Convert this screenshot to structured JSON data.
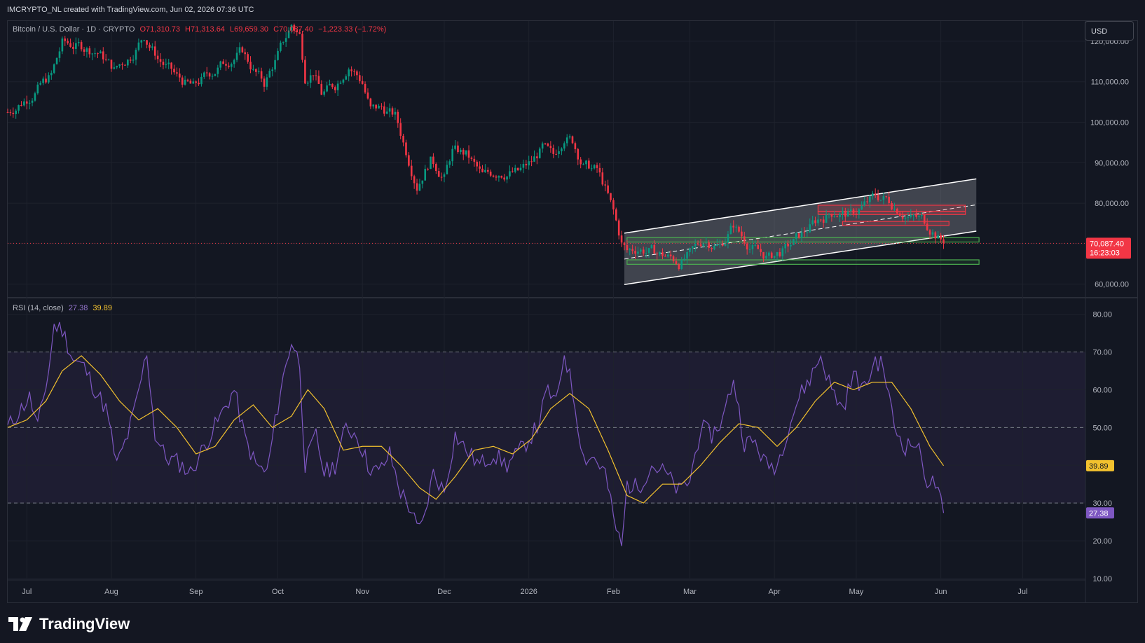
{
  "header": {
    "text": "IMCRYPTO_NL created with TradingView.com, Jun 02, 2026 07:36 UTC"
  },
  "legend": {
    "symbol": "Bitcoin / U.S. Dollar · 1D · CRYPTO",
    "open": "O71,310.73",
    "high": "H71,313.64",
    "low": "L69,659.30",
    "close": "C70,087.40",
    "change": "−1,223.33 (−1.72%)"
  },
  "currency_button": "USD",
  "price_label": {
    "price": "70,087.40",
    "countdown": "16:23:03"
  },
  "rsi_legend": {
    "label": "RSI (14, close)",
    "rsi": "27.38",
    "ma": "39.89"
  },
  "rsi_labels": {
    "rsi": "27.38",
    "ma": "39.89"
  },
  "brand": {
    "name": "TradingView"
  },
  "colors": {
    "up": "#089981",
    "down": "#f23645",
    "rsi": "#7e57c2",
    "rsi_ma": "#f2c12e",
    "support": "#4caf50",
    "resistance": "#f23645",
    "channel": "#ffffff",
    "price_line": "#f23645"
  },
  "chart_data": [
    {
      "type": "candlestick",
      "title": "Bitcoin / U.S. Dollar · 1D · CRYPTO",
      "x_range": [
        "2025-06-24",
        "2026-07-24"
      ],
      "ylim": [
        57000,
        125000
      ],
      "yticks": [
        60000,
        70000,
        80000,
        90000,
        100000,
        110000,
        120000
      ],
      "ytick_labels": [
        "60,000.00",
        "70,000.00",
        "80,000.00",
        "90,000.00",
        "100,000.00",
        "110,000.00",
        "120,000.00"
      ],
      "xticks": [
        {
          "date": "2025-07-01",
          "label": "Jul"
        },
        {
          "date": "2025-08-01",
          "label": "Aug"
        },
        {
          "date": "2025-09-01",
          "label": "Sep"
        },
        {
          "date": "2025-10-01",
          "label": "Oct"
        },
        {
          "date": "2025-11-01",
          "label": "Nov"
        },
        {
          "date": "2025-12-01",
          "label": "Dec"
        },
        {
          "date": "2026-01-01",
          "label": "2026"
        },
        {
          "date": "2026-02-01",
          "label": "Feb"
        },
        {
          "date": "2026-03-01",
          "label": "Mar"
        },
        {
          "date": "2026-04-01",
          "label": "Apr"
        },
        {
          "date": "2026-05-01",
          "label": "May"
        },
        {
          "date": "2026-06-01",
          "label": "Jun"
        },
        {
          "date": "2026-07-01",
          "label": "Jul"
        }
      ],
      "trend_path": [
        [
          "2025-06-24",
          102500
        ],
        [
          "2025-07-01",
          106000
        ],
        [
          "2025-07-10",
          111500
        ],
        [
          "2025-07-14",
          119500
        ],
        [
          "2025-07-22",
          118500
        ],
        [
          "2025-07-27",
          117500
        ],
        [
          "2025-08-02",
          113000
        ],
        [
          "2025-08-08",
          116500
        ],
        [
          "2025-08-13",
          121500
        ],
        [
          "2025-08-18",
          116000
        ],
        [
          "2025-08-25",
          111000
        ],
        [
          "2025-08-31",
          108500
        ],
        [
          "2025-09-05",
          111500
        ],
        [
          "2025-09-13",
          115500
        ],
        [
          "2025-09-18",
          117500
        ],
        [
          "2025-09-22",
          113000
        ],
        [
          "2025-09-26",
          109500
        ],
        [
          "2025-10-01",
          116500
        ],
        [
          "2025-10-06",
          124000
        ],
        [
          "2025-10-09",
          121500
        ],
        [
          "2025-10-11",
          111500
        ],
        [
          "2025-10-14",
          113000
        ],
        [
          "2025-10-17",
          107000
        ],
        [
          "2025-10-22",
          109000
        ],
        [
          "2025-10-27",
          114500
        ],
        [
          "2025-11-01",
          110000
        ],
        [
          "2025-11-04",
          103000
        ],
        [
          "2025-11-08",
          103500
        ],
        [
          "2025-11-13",
          101500
        ],
        [
          "2025-11-17",
          93000
        ],
        [
          "2025-11-21",
          85000
        ],
        [
          "2025-11-26",
          91000
        ],
        [
          "2025-12-01",
          86500
        ],
        [
          "2025-12-04",
          93000
        ],
        [
          "2025-12-09",
          92000
        ],
        [
          "2025-12-15",
          86500
        ],
        [
          "2025-12-21",
          88000
        ],
        [
          "2025-12-28",
          87500
        ],
        [
          "2026-01-02",
          90000
        ],
        [
          "2026-01-06",
          93500
        ],
        [
          "2026-01-10",
          91000
        ],
        [
          "2026-01-14",
          97000
        ],
        [
          "2026-01-17",
          95500
        ],
        [
          "2026-01-21",
          89500
        ],
        [
          "2026-01-26",
          88000
        ],
        [
          "2026-01-29",
          83500
        ],
        [
          "2026-02-01",
          77500
        ],
        [
          "2026-02-04",
          70000
        ],
        [
          "2026-02-06",
          68000
        ],
        [
          "2026-02-10",
          69000
        ],
        [
          "2026-02-15",
          68000
        ],
        [
          "2026-02-20",
          67000
        ],
        [
          "2026-02-25",
          65500
        ],
        [
          "2026-03-01",
          67000
        ],
        [
          "2026-03-06",
          71000
        ],
        [
          "2026-03-12",
          69500
        ],
        [
          "2026-03-17",
          74500
        ],
        [
          "2026-03-21",
          71000
        ],
        [
          "2026-03-26",
          68000
        ],
        [
          "2026-03-30",
          66500
        ],
        [
          "2026-04-05",
          68500
        ],
        [
          "2026-04-10",
          71500
        ],
        [
          "2026-04-17",
          76000
        ],
        [
          "2026-04-23",
          78000
        ],
        [
          "2026-04-29",
          77000
        ],
        [
          "2026-05-03",
          79000
        ],
        [
          "2026-05-08",
          81500
        ],
        [
          "2026-05-12",
          81000
        ],
        [
          "2026-05-17",
          78500
        ],
        [
          "2026-05-21",
          76500
        ],
        [
          "2026-05-25",
          76000
        ],
        [
          "2026-05-29",
          73500
        ],
        [
          "2026-06-02",
          70087
        ]
      ],
      "drawings": {
        "channel_upper": [
          [
            "2026-02-05",
            72600
          ],
          [
            "2026-06-14",
            86000
          ]
        ],
        "channel_lower": [
          [
            "2026-02-05",
            59900
          ],
          [
            "2026-06-14",
            73100
          ]
        ],
        "channel_mid": [
          [
            "2026-02-05",
            66200
          ],
          [
            "2026-06-14",
            79600
          ]
        ],
        "resistance_zones": [
          {
            "from": "2026-04-17",
            "to": "2026-06-10",
            "low": 78000,
            "high": 79500
          },
          {
            "from": "2026-04-17",
            "to": "2026-06-10",
            "low": 77200,
            "high": 78000
          },
          {
            "from": "2026-04-26",
            "to": "2026-06-04",
            "low": 74500,
            "high": 75500
          }
        ],
        "support_zones": [
          {
            "from": "2026-02-06",
            "to": "2026-06-15",
            "low": 70400,
            "high": 71500
          },
          {
            "from": "2026-02-06",
            "to": "2026-06-15",
            "low": 64900,
            "high": 66000
          }
        ]
      },
      "last_price": 70087.4
    },
    {
      "type": "line",
      "title": "RSI (14, close)",
      "ylim": [
        10,
        84
      ],
      "yticks": [
        10,
        20,
        30,
        40,
        50,
        60,
        70,
        80
      ],
      "ytick_labels": [
        "10.00",
        "20.00",
        "30.00",
        "40.00",
        "50.00",
        "60.00",
        "70.00",
        "80.00"
      ],
      "bands": {
        "upper": 70,
        "middle": 50,
        "lower": 30
      },
      "series": [
        {
          "name": "RSI",
          "values": [
            [
              "2025-06-24",
              50
            ],
            [
              "2025-07-02",
              58
            ],
            [
              "2025-07-05",
              50
            ],
            [
              "2025-07-09",
              65
            ],
            [
              "2025-07-11",
              77
            ],
            [
              "2025-07-14",
              76
            ],
            [
              "2025-07-18",
              68
            ],
            [
              "2025-07-22",
              66
            ],
            [
              "2025-07-26",
              60
            ],
            [
              "2025-07-30",
              55
            ],
            [
              "2025-08-03",
              40
            ],
            [
              "2025-08-07",
              48
            ],
            [
              "2025-08-10",
              56
            ],
            [
              "2025-08-14",
              70
            ],
            [
              "2025-08-17",
              48
            ],
            [
              "2025-08-21",
              42
            ],
            [
              "2025-08-25",
              41
            ],
            [
              "2025-08-30",
              38
            ],
            [
              "2025-09-04",
              45
            ],
            [
              "2025-09-10",
              53
            ],
            [
              "2025-09-15",
              60
            ],
            [
              "2025-09-19",
              47
            ],
            [
              "2025-09-23",
              40
            ],
            [
              "2025-09-27",
              38
            ],
            [
              "2025-10-02",
              60
            ],
            [
              "2025-10-06",
              73
            ],
            [
              "2025-10-09",
              67
            ],
            [
              "2025-10-11",
              40
            ],
            [
              "2025-10-15",
              48
            ],
            [
              "2025-10-18",
              38
            ],
            [
              "2025-10-22",
              40
            ],
            [
              "2025-10-26",
              50
            ],
            [
              "2025-10-30",
              48
            ],
            [
              "2025-11-03",
              40
            ],
            [
              "2025-11-07",
              38
            ],
            [
              "2025-11-11",
              43
            ],
            [
              "2025-11-15",
              33
            ],
            [
              "2025-11-19",
              28
            ],
            [
              "2025-11-21",
              23
            ],
            [
              "2025-11-23",
              24
            ],
            [
              "2025-11-27",
              38
            ],
            [
              "2025-12-01",
              33
            ],
            [
              "2025-12-05",
              48
            ],
            [
              "2025-12-09",
              44
            ],
            [
              "2025-12-14",
              40
            ],
            [
              "2025-12-19",
              43
            ],
            [
              "2025-12-24",
              40
            ],
            [
              "2025-12-29",
              44
            ],
            [
              "2026-01-04",
              50
            ],
            [
              "2026-01-08",
              60
            ],
            [
              "2026-01-11",
              56
            ],
            [
              "2026-01-14",
              70
            ],
            [
              "2026-01-17",
              60
            ],
            [
              "2026-01-21",
              42
            ],
            [
              "2026-01-25",
              42
            ],
            [
              "2026-01-29",
              38
            ],
            [
              "2026-02-01",
              26
            ],
            [
              "2026-02-04",
              18
            ],
            [
              "2026-02-06",
              35
            ],
            [
              "2026-02-10",
              34
            ],
            [
              "2026-02-15",
              40
            ],
            [
              "2026-02-20",
              38
            ],
            [
              "2026-02-25",
              33
            ],
            [
              "2026-03-01",
              36
            ],
            [
              "2026-03-05",
              50
            ],
            [
              "2026-03-09",
              48
            ],
            [
              "2026-03-13",
              52
            ],
            [
              "2026-03-17",
              63
            ],
            [
              "2026-03-21",
              46
            ],
            [
              "2026-03-25",
              46
            ],
            [
              "2026-03-29",
              40
            ],
            [
              "2026-04-02",
              40
            ],
            [
              "2026-04-06",
              50
            ],
            [
              "2026-04-10",
              58
            ],
            [
              "2026-04-14",
              63
            ],
            [
              "2026-04-18",
              69
            ],
            [
              "2026-04-22",
              60
            ],
            [
              "2026-04-26",
              55
            ],
            [
              "2026-04-30",
              64
            ],
            [
              "2026-05-04",
              60
            ],
            [
              "2026-05-08",
              68
            ],
            [
              "2026-05-11",
              66
            ],
            [
              "2026-05-15",
              50
            ],
            [
              "2026-05-19",
              45
            ],
            [
              "2026-05-23",
              46
            ],
            [
              "2026-05-27",
              36
            ],
            [
              "2026-05-30",
              35
            ],
            [
              "2026-06-02",
              27.38
            ]
          ]
        },
        {
          "name": "RSI-based MA",
          "values": [
            [
              "2025-06-24",
              50
            ],
            [
              "2025-07-01",
              52
            ],
            [
              "2025-07-08",
              57
            ],
            [
              "2025-07-14",
              65
            ],
            [
              "2025-07-21",
              69
            ],
            [
              "2025-07-28",
              64
            ],
            [
              "2025-08-04",
              57
            ],
            [
              "2025-08-11",
              52
            ],
            [
              "2025-08-18",
              55
            ],
            [
              "2025-08-25",
              50
            ],
            [
              "2025-09-01",
              43
            ],
            [
              "2025-09-08",
              45
            ],
            [
              "2025-09-15",
              52
            ],
            [
              "2025-09-22",
              56
            ],
            [
              "2025-09-29",
              50
            ],
            [
              "2025-10-06",
              53
            ],
            [
              "2025-10-12",
              60
            ],
            [
              "2025-10-18",
              55
            ],
            [
              "2025-10-25",
              44
            ],
            [
              "2025-11-01",
              45
            ],
            [
              "2025-11-08",
              45
            ],
            [
              "2025-11-15",
              40
            ],
            [
              "2025-11-22",
              34
            ],
            [
              "2025-11-28",
              31
            ],
            [
              "2025-12-05",
              37
            ],
            [
              "2025-12-12",
              44
            ],
            [
              "2025-12-19",
              45
            ],
            [
              "2025-12-26",
              43
            ],
            [
              "2026-01-02",
              47
            ],
            [
              "2026-01-09",
              55
            ],
            [
              "2026-01-16",
              59
            ],
            [
              "2026-01-23",
              55
            ],
            [
              "2026-01-30",
              44
            ],
            [
              "2026-02-06",
              32
            ],
            [
              "2026-02-12",
              30
            ],
            [
              "2026-02-19",
              35
            ],
            [
              "2026-02-26",
              35
            ],
            [
              "2026-03-05",
              40
            ],
            [
              "2026-03-12",
              46
            ],
            [
              "2026-03-19",
              51
            ],
            [
              "2026-03-26",
              50
            ],
            [
              "2026-04-02",
              45
            ],
            [
              "2026-04-09",
              50
            ],
            [
              "2026-04-16",
              57
            ],
            [
              "2026-04-23",
              62
            ],
            [
              "2026-04-30",
              60
            ],
            [
              "2026-05-07",
              62
            ],
            [
              "2026-05-14",
              62
            ],
            [
              "2026-05-21",
              55
            ],
            [
              "2026-05-28",
              45
            ],
            [
              "2026-06-02",
              39.89
            ]
          ]
        }
      ]
    }
  ]
}
